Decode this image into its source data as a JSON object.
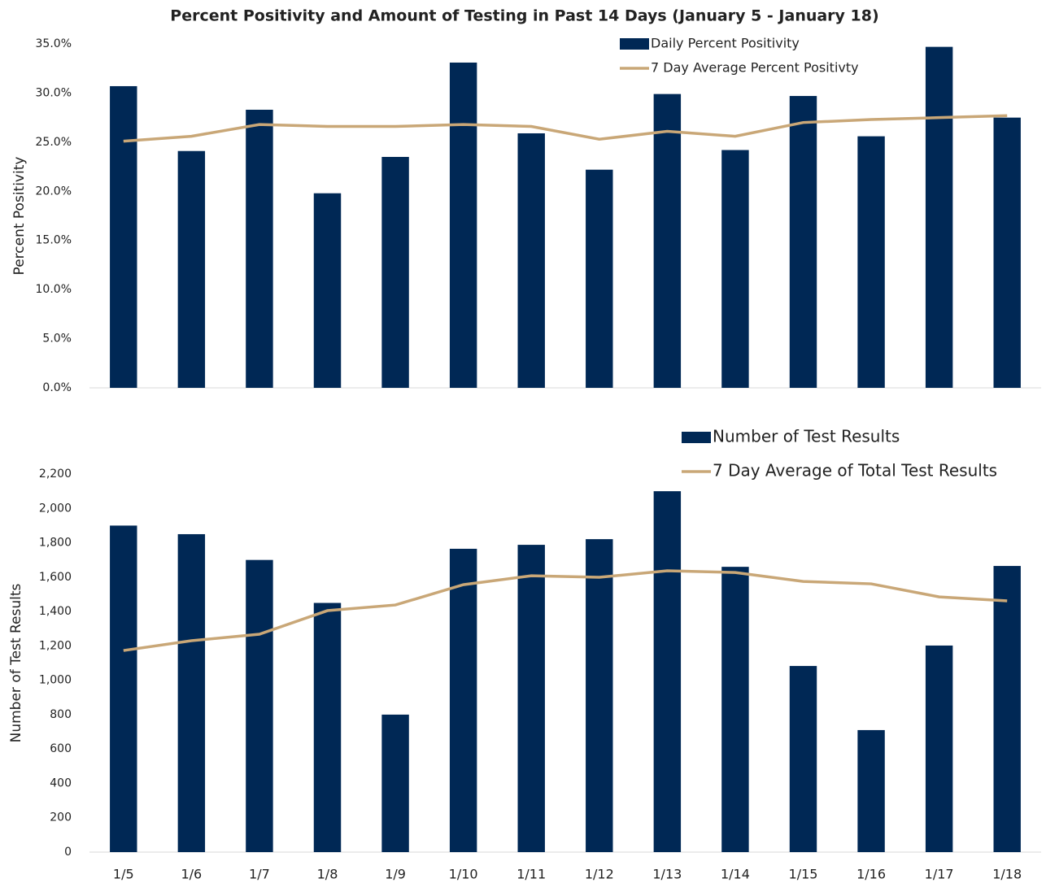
{
  "chart_data": [
    {
      "type": "bar",
      "title": "Percent Positivity and Amount of Testing in Past 14 Days (January 5 - January 18)",
      "y_label": "Percent Positivity",
      "categories": [
        null,
        null,
        null,
        null,
        null,
        null,
        null,
        null,
        null,
        null,
        null,
        null,
        null,
        null
      ],
      "series": [
        {
          "name": "Daily Percent Positivity",
          "type": "bar",
          "color": "#002855",
          "values": [
            30.7,
            24.1,
            28.3,
            19.8,
            23.5,
            33.1,
            25.9,
            22.2,
            29.9,
            24.2,
            29.7,
            25.6,
            34.7,
            27.5
          ]
        },
        {
          "name": "7 Day Average Percent Positivty",
          "type": "line",
          "color": "#c9a777",
          "values": [
            25.1,
            25.6,
            26.8,
            26.6,
            26.6,
            26.8,
            26.6,
            25.3,
            26.1,
            25.6,
            27.0,
            27.3,
            27.5,
            27.7
          ]
        }
      ],
      "ylim": [
        0,
        35
      ],
      "yticks": [
        {
          "value": 0,
          "label": "0.0%"
        },
        {
          "value": 5,
          "label": "5.0%"
        },
        {
          "value": 10,
          "label": "10.0%"
        },
        {
          "value": 15,
          "label": "15.0%"
        },
        {
          "value": 20,
          "label": "20.0%"
        },
        {
          "value": 25,
          "label": "25.0%"
        },
        {
          "value": 30,
          "label": "30.0%"
        },
        {
          "value": 35,
          "label": "35.0%"
        }
      ],
      "grid": false,
      "legend": "top-right"
    },
    {
      "type": "bar",
      "y_label": "Number of Test Results",
      "categories": [
        "1/5",
        "1/6",
        "1/7",
        "1/8",
        "1/9",
        "1/10",
        "1/11",
        "1/12",
        "1/13",
        "1/14",
        "1/15",
        "1/16",
        "1/17",
        "1/18"
      ],
      "series": [
        {
          "name": "Number of Test Results",
          "type": "bar",
          "color": "#002855",
          "values": [
            1900,
            1850,
            1700,
            1450,
            800,
            1765,
            1788,
            1821,
            2100,
            1660,
            1083,
            710,
            1202,
            1665
          ]
        },
        {
          "name": "7 Day Average of Total Test Results",
          "type": "line",
          "color": "#c9a777",
          "values": [
            1173,
            1230,
            1268,
            1405,
            1438,
            1556,
            1608,
            1599,
            1637,
            1627,
            1575,
            1561,
            1485,
            1462
          ]
        }
      ],
      "ylim": [
        0,
        2200
      ],
      "yticks": [
        0,
        200,
        400,
        600,
        800,
        {
          "value": 1000,
          "label": "1,000"
        },
        {
          "value": 1200,
          "label": "1,200"
        },
        {
          "value": 1400,
          "label": "1,400"
        },
        {
          "value": 1600,
          "label": "1,600"
        },
        {
          "value": 1800,
          "label": "1,800"
        },
        {
          "value": 2000,
          "label": "2,000"
        },
        {
          "value": 2200,
          "label": "2,200"
        }
      ],
      "grid": false,
      "legend": "top-right"
    }
  ]
}
